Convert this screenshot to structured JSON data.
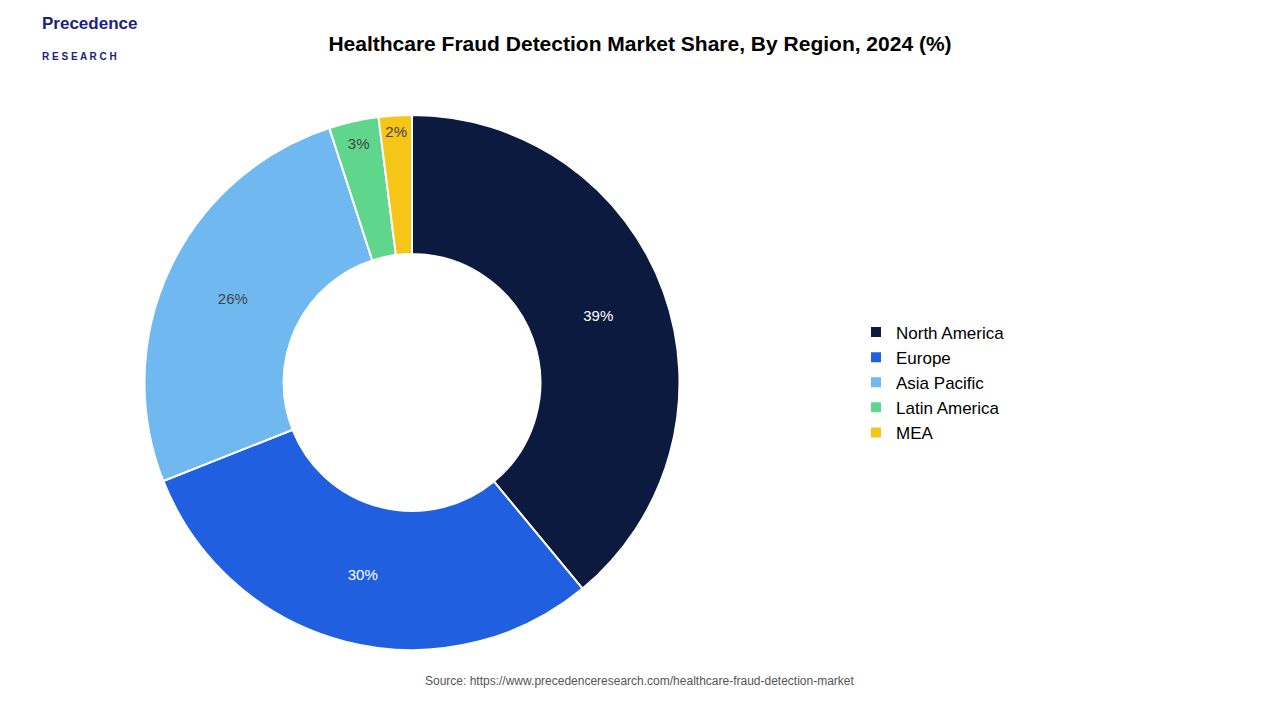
{
  "chart_data": {
    "type": "donut",
    "title": "Healthcare Fraud Detection Market Share, By Region, 2024 (%)",
    "categories": [
      "North America",
      "Europe",
      "Asia Pacific",
      "Latin America",
      "MEA"
    ],
    "values": [
      39,
      30,
      26,
      3,
      2
    ],
    "value_labels": [
      "39%",
      "30%",
      "26%",
      "3%",
      "2%"
    ],
    "colors": [
      "#0d1a40",
      "#2060e0",
      "#70b8f0",
      "#5fd68c",
      "#f5c518"
    ],
    "data_labels": true,
    "legend": "right",
    "annotations": [
      "Precedence",
      "R E S E A R C H",
      "Source: https://www.precedenceresearch.com/healthcare-fraud-detection-market"
    ]
  }
}
